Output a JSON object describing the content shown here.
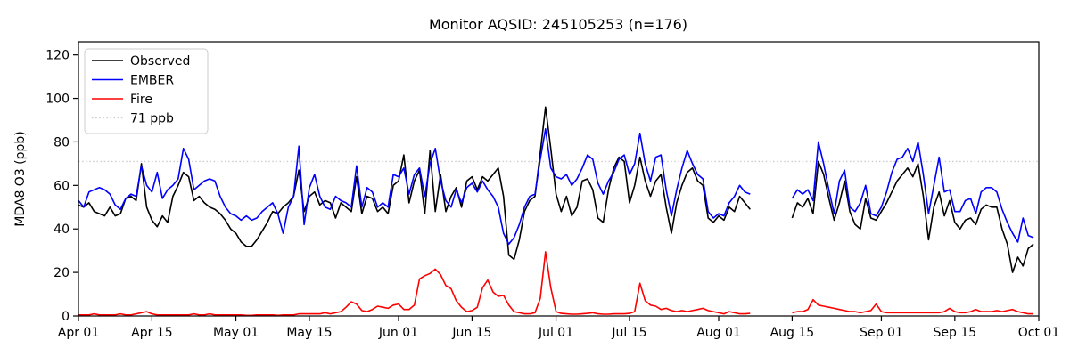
{
  "title": "Monitor AQSID: 245105253 (n=176)",
  "colors": {
    "observed": "#000000",
    "ember": "#0000ff",
    "fire": "#ff0000",
    "threshold": "#cccccc",
    "axis": "#000000",
    "background": "#ffffff",
    "legend_border": "#cccccc"
  },
  "chart_data": {
    "type": "line",
    "title": "Monitor AQSID: 245105253 (n=176)",
    "xlabel": "",
    "ylabel": "MDA8 O3 (ppb)",
    "ylim": [
      0,
      126
    ],
    "yticks": [
      0,
      20,
      40,
      60,
      80,
      100,
      120
    ],
    "grid": false,
    "legend_position": "upper left",
    "n_points": 176,
    "x_start_label": "Apr 01",
    "x_end_label": "Oct 01",
    "x_total_days": 183,
    "data_gap": {
      "from": "Aug 08",
      "to": "Aug 14"
    },
    "xticks": [
      {
        "day": 0,
        "label": "Apr 01"
      },
      {
        "day": 14,
        "label": "Apr 15"
      },
      {
        "day": 30,
        "label": "May 01"
      },
      {
        "day": 44,
        "label": "May 15"
      },
      {
        "day": 61,
        "label": "Jun 01"
      },
      {
        "day": 75,
        "label": "Jun 15"
      },
      {
        "day": 91,
        "label": "Jul 01"
      },
      {
        "day": 105,
        "label": "Jul 15"
      },
      {
        "day": 122,
        "label": "Aug 01"
      },
      {
        "day": 136,
        "label": "Aug 15"
      },
      {
        "day": 153,
        "label": "Sep 01"
      },
      {
        "day": 167,
        "label": "Sep 15"
      },
      {
        "day": 183,
        "label": "Oct 01"
      }
    ],
    "threshold": {
      "value": 71,
      "label": "71 ppb",
      "style": "dotted",
      "color": "#cccccc"
    },
    "legend": [
      {
        "name": "Observed",
        "color": "#000000",
        "style": "solid"
      },
      {
        "name": "EMBER",
        "color": "#0000ff",
        "style": "solid"
      },
      {
        "name": "Fire",
        "color": "#ff0000",
        "style": "solid"
      },
      {
        "name": "71 ppb",
        "color": "#cccccc",
        "style": "dotted"
      }
    ],
    "series": [
      {
        "name": "Observed",
        "color": "#000000",
        "values": [
          51,
          50,
          52,
          48,
          47,
          46,
          50,
          46,
          47,
          54,
          55,
          53,
          70,
          50,
          44,
          41,
          46,
          43,
          55,
          60,
          66,
          64,
          53,
          55,
          52,
          50,
          49,
          47,
          44,
          40,
          38,
          34,
          32,
          32,
          35,
          39,
          43,
          48,
          47,
          50,
          52,
          55,
          67,
          48,
          55,
          57,
          51,
          53,
          52,
          45,
          52,
          50,
          48,
          64,
          47,
          55,
          54,
          48,
          50,
          47,
          60,
          62,
          74,
          52,
          62,
          67,
          47,
          76,
          48,
          65,
          48,
          55,
          59,
          50,
          62,
          64,
          58,
          64,
          62,
          65,
          68,
          55,
          28,
          26,
          35,
          48,
          53,
          55,
          75,
          96,
          77,
          56,
          48,
          55,
          46,
          50,
          62,
          63,
          58,
          45,
          43,
          58,
          68,
          73,
          71,
          52,
          60,
          73,
          62,
          55,
          62,
          65,
          50,
          38,
          52,
          60,
          66,
          68,
          62,
          60,
          45,
          43,
          46,
          44,
          50,
          48,
          55,
          52,
          49,
          null,
          null,
          null,
          null,
          null,
          null,
          null,
          45,
          52,
          50,
          54,
          47,
          71,
          65,
          54,
          44,
          52,
          62,
          48,
          42,
          40,
          54,
          45,
          44,
          48,
          52,
          57,
          62,
          65,
          68,
          64,
          70,
          55,
          35,
          50,
          57,
          46,
          53,
          43,
          40,
          44,
          45,
          42,
          49,
          51,
          50,
          50,
          40,
          33,
          20,
          27,
          23,
          31,
          33
        ]
      },
      {
        "name": "EMBER",
        "color": "#0000ff",
        "values": [
          53,
          50,
          57,
          58,
          59,
          58,
          56,
          51,
          49,
          54,
          56,
          55,
          69,
          60,
          57,
          66,
          54,
          58,
          60,
          63,
          77,
          72,
          58,
          60,
          62,
          63,
          62,
          55,
          50,
          47,
          46,
          44,
          46,
          44,
          45,
          48,
          50,
          52,
          47,
          38,
          50,
          55,
          78,
          42,
          59,
          65,
          55,
          50,
          49,
          55,
          53,
          52,
          50,
          69,
          50,
          59,
          57,
          50,
          52,
          50,
          65,
          64,
          68,
          56,
          65,
          68,
          55,
          70,
          77,
          62,
          53,
          50,
          58,
          52,
          59,
          61,
          57,
          62,
          58,
          55,
          50,
          38,
          33,
          36,
          42,
          50,
          55,
          56,
          72,
          86,
          68,
          64,
          63,
          65,
          60,
          63,
          68,
          74,
          72,
          61,
          56,
          62,
          66,
          72,
          74,
          65,
          70,
          84,
          70,
          62,
          73,
          74,
          58,
          46,
          58,
          68,
          76,
          70,
          65,
          63,
          48,
          45,
          47,
          46,
          52,
          55,
          60,
          57,
          56,
          null,
          null,
          null,
          null,
          null,
          null,
          null,
          54,
          58,
          56,
          58,
          53,
          80,
          70,
          58,
          47,
          62,
          67,
          50,
          48,
          52,
          60,
          47,
          46,
          50,
          57,
          66,
          72,
          73,
          77,
          71,
          80,
          65,
          47,
          60,
          73,
          57,
          58,
          48,
          48,
          53,
          54,
          47,
          57,
          59,
          59,
          57,
          49,
          43,
          38,
          34,
          45,
          37,
          36
        ]
      },
      {
        "name": "Fire",
        "color": "#ff0000",
        "values": [
          0.5,
          0.5,
          0.5,
          1,
          0.5,
          0.5,
          0.5,
          0.5,
          1,
          0.5,
          0.5,
          1,
          1.5,
          2,
          1,
          0.5,
          0.5,
          0.5,
          0.5,
          0.5,
          0.5,
          0.5,
          1,
          0.5,
          0.5,
          1,
          0.5,
          0.5,
          0.5,
          0.5,
          0.5,
          0.5,
          0.3,
          0.3,
          0.5,
          0.5,
          0.5,
          0.5,
          0.3,
          0.5,
          0.5,
          0.5,
          1,
          1,
          1,
          1,
          1,
          1.5,
          1,
          1.5,
          2,
          4,
          6.5,
          5.5,
          2.5,
          2,
          3,
          4.5,
          4,
          3.5,
          5,
          5.5,
          3,
          3,
          5,
          17,
          18.5,
          19.5,
          21.5,
          19,
          14,
          12.5,
          7,
          4,
          2,
          2.5,
          4,
          13,
          16.5,
          11,
          9,
          9.5,
          5,
          2,
          1.5,
          1,
          1,
          1.5,
          8,
          29.5,
          13,
          2,
          1.2,
          1,
          0.8,
          0.8,
          1,
          1.2,
          1.5,
          1,
          0.8,
          0.8,
          1,
          1,
          1,
          1.2,
          2,
          15,
          7,
          5,
          4.5,
          3,
          3.5,
          2.5,
          2,
          2.5,
          2,
          2.5,
          3,
          3.5,
          2.5,
          2,
          1.5,
          1,
          2,
          1.5,
          1,
          1,
          1.2,
          null,
          null,
          null,
          null,
          null,
          null,
          null,
          1.5,
          2,
          2,
          3,
          7.5,
          5,
          4.5,
          4,
          3.5,
          3,
          2.5,
          2,
          2,
          1.5,
          2,
          2.5,
          5.5,
          2,
          1.5,
          1.5,
          1.5,
          1.5,
          1.5,
          1.5,
          1.5,
          1.5,
          1.5,
          1.5,
          1.5,
          2,
          3.5,
          2,
          1.5,
          1.5,
          2,
          3,
          2,
          2,
          2,
          2.5,
          2,
          2.5,
          3,
          2,
          1.5,
          1,
          1
        ]
      }
    ]
  }
}
